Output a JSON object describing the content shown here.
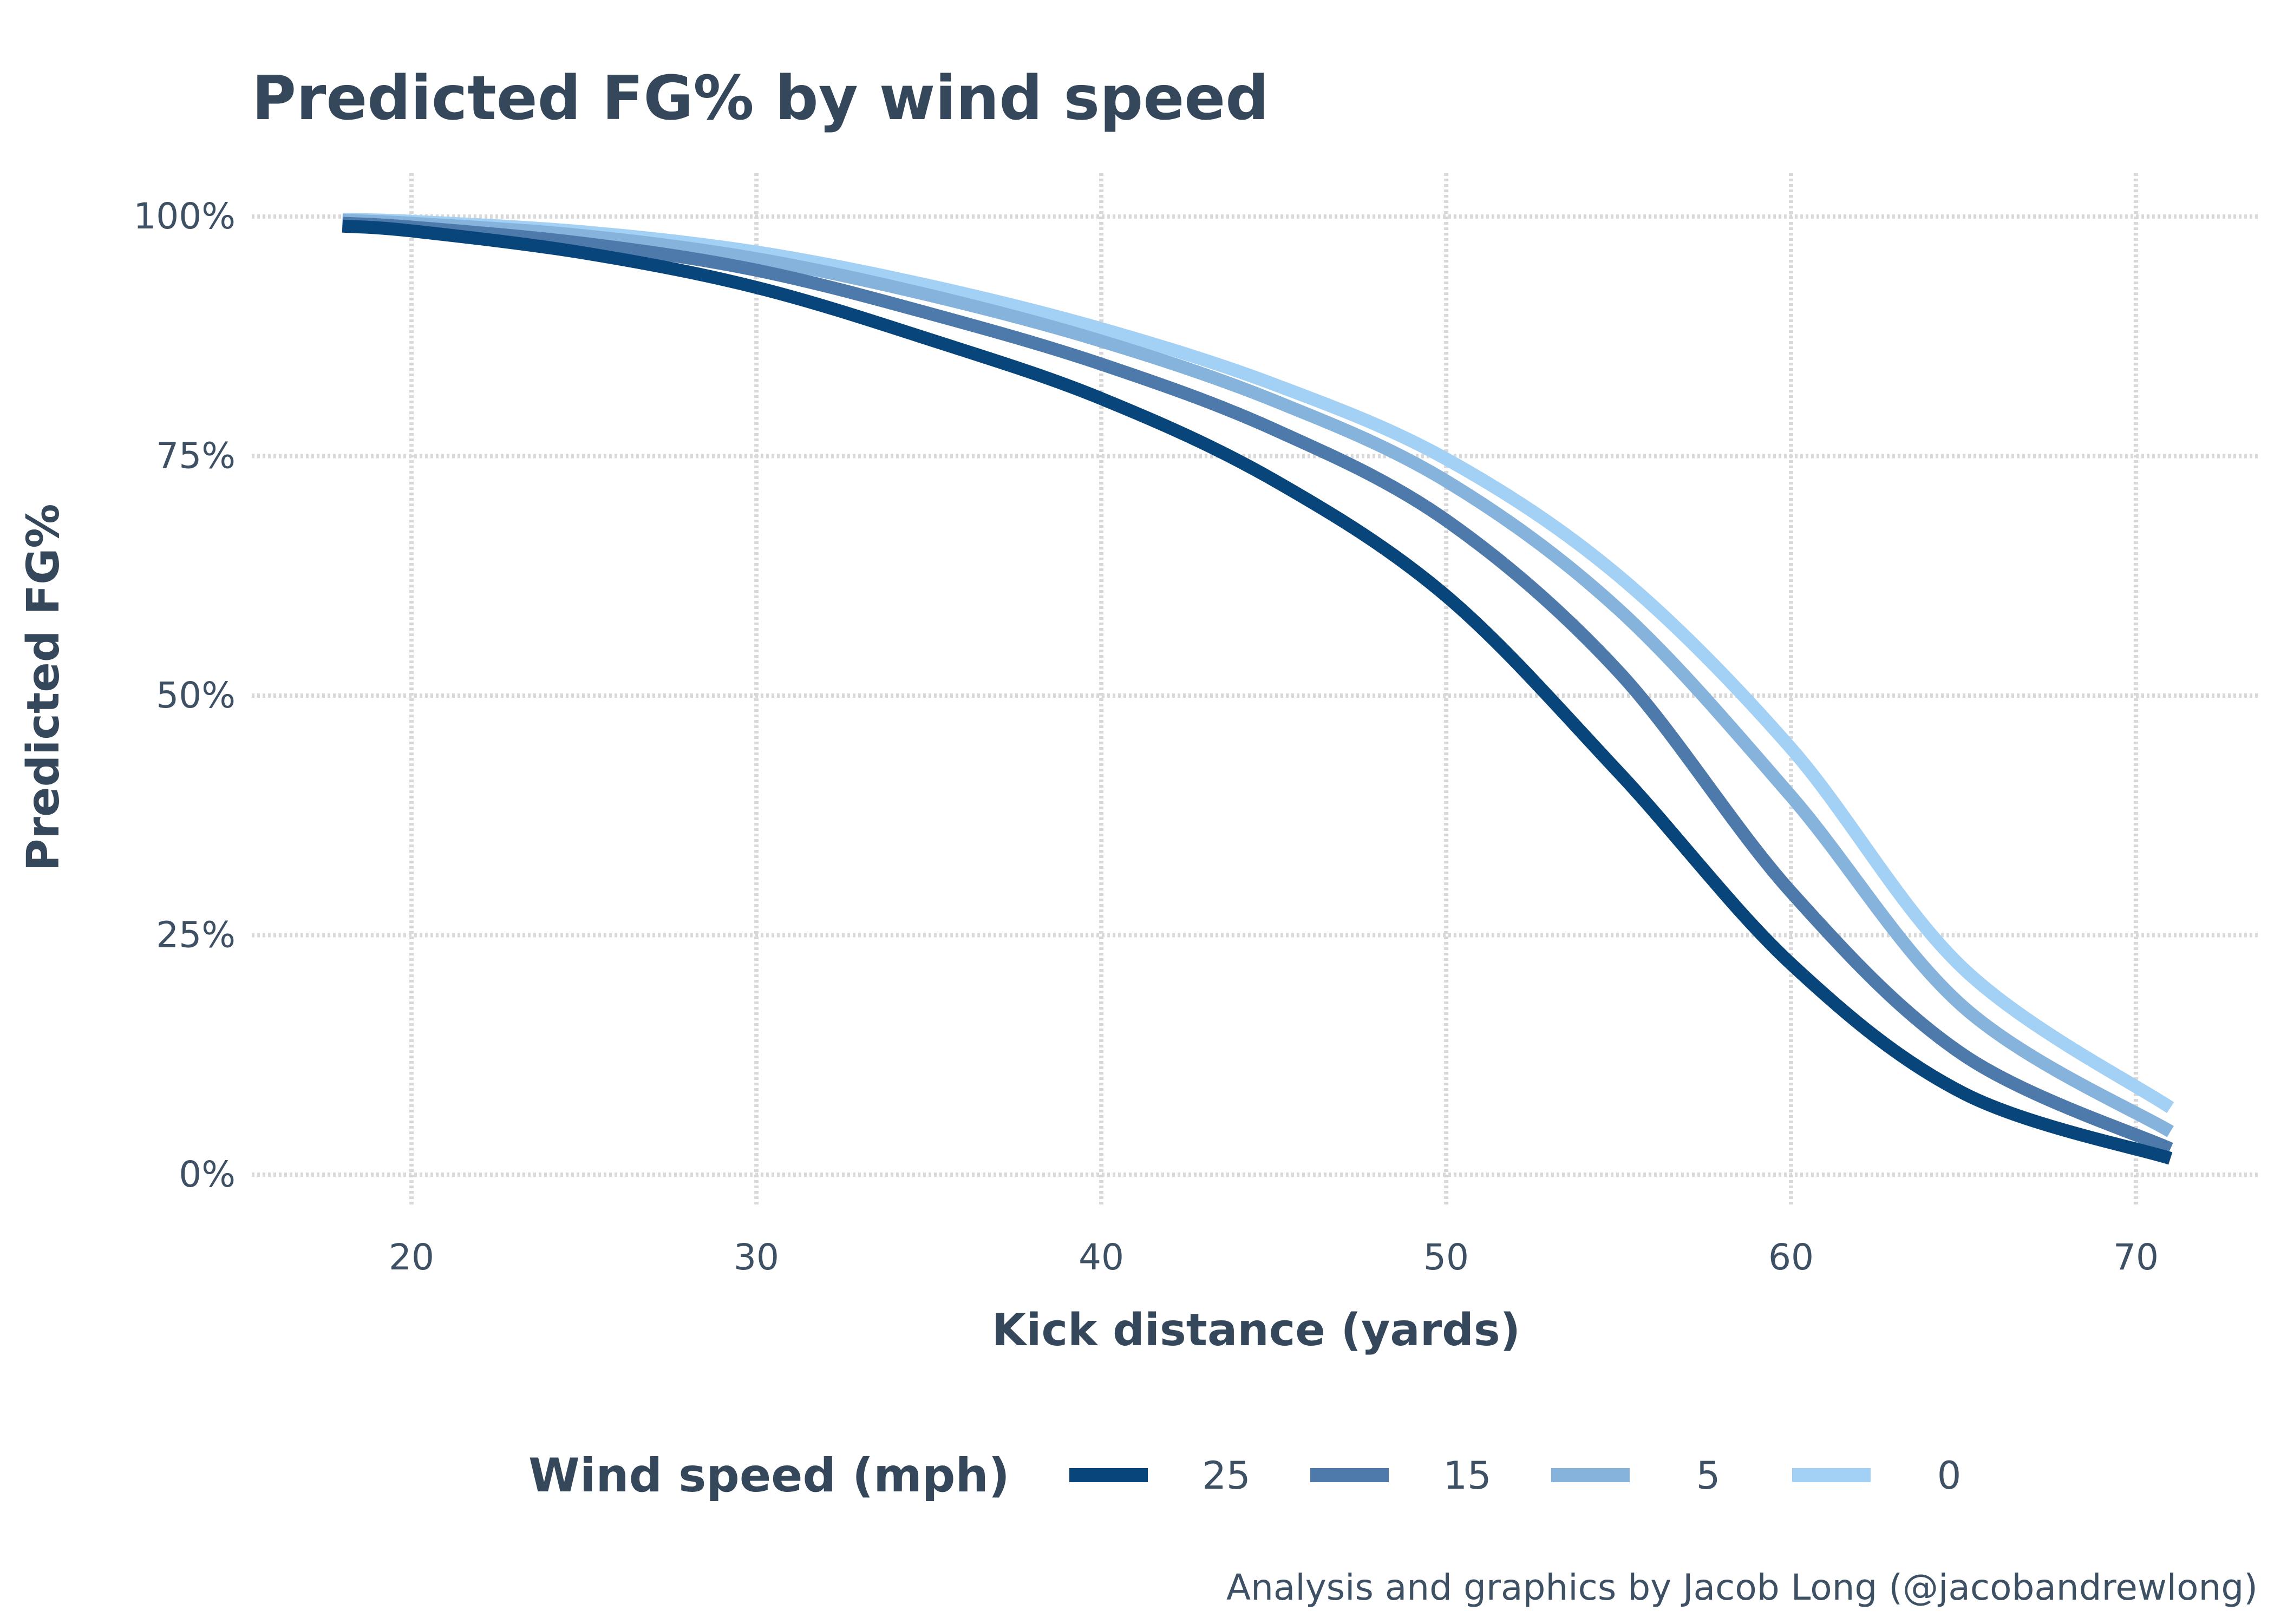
{
  "chart_data": {
    "type": "line",
    "title": "Predicted FG% by wind speed",
    "xlabel": "Kick distance (yards)",
    "ylabel": "Predicted FG%",
    "caption": "Analysis and graphics by Jacob Long (@jacobandrewlong)",
    "xlim": [
      18,
      71
    ],
    "ylim": [
      0,
      1
    ],
    "x_ticks": [
      20,
      30,
      40,
      50,
      60,
      70
    ],
    "x_tick_labels": [
      "20",
      "30",
      "40",
      "50",
      "60",
      "70"
    ],
    "y_ticks": [
      0,
      0.25,
      0.5,
      0.75,
      1
    ],
    "y_tick_labels": [
      "0%",
      "25%",
      "50%",
      "75%",
      "100%"
    ],
    "grid": true,
    "legend": {
      "title": "Wind speed (mph)",
      "position": "bottom"
    },
    "x": [
      18,
      20,
      25,
      30,
      35,
      40,
      45,
      50,
      55,
      60,
      65,
      71
    ],
    "series": [
      {
        "name": "25",
        "color": "#08457a",
        "values": [
          0.99,
          0.985,
          0.962,
          0.926,
          0.872,
          0.81,
          0.725,
          0.604,
          0.42,
          0.22,
          0.085,
          0.017
        ]
      },
      {
        "name": "15",
        "color": "#4e7aab",
        "values": [
          0.993,
          0.989,
          0.972,
          0.944,
          0.899,
          0.846,
          0.778,
          0.683,
          0.525,
          0.295,
          0.125,
          0.027
        ]
      },
      {
        "name": "5",
        "color": "#86b3dc",
        "values": [
          0.996,
          0.993,
          0.98,
          0.956,
          0.918,
          0.87,
          0.808,
          0.724,
          0.59,
          0.395,
          0.175,
          0.045
        ]
      },
      {
        "name": "0",
        "color": "#a3d0f5",
        "values": [
          0.997,
          0.995,
          0.984,
          0.963,
          0.928,
          0.883,
          0.825,
          0.747,
          0.625,
          0.445,
          0.215,
          0.07
        ]
      }
    ]
  }
}
